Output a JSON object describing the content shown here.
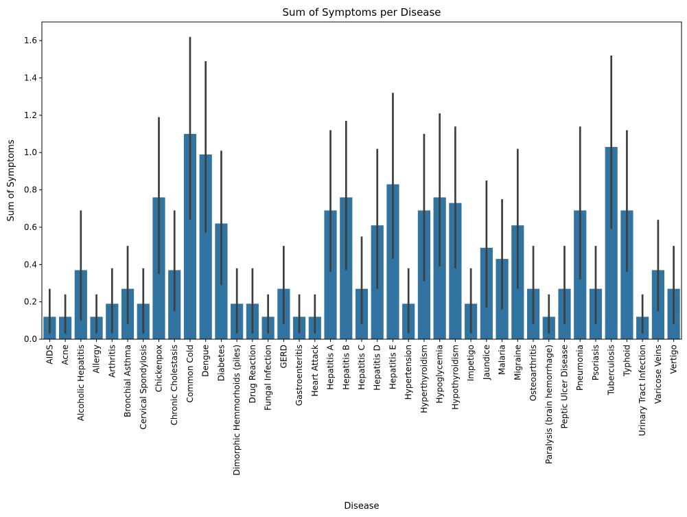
{
  "chart_data": {
    "type": "bar",
    "title": "Sum of Symptoms per Disease",
    "xlabel": "Disease",
    "ylabel": "Sum of Symptoms",
    "ylim": [
      0,
      1.7
    ],
    "yticks": [
      "0.0",
      "0.2",
      "0.4",
      "0.6",
      "0.8",
      "1.0",
      "1.2",
      "1.4",
      "1.6"
    ],
    "grid": false,
    "bar_color": "#3274a1",
    "errorbar_color": "#3d3d3d",
    "categories": [
      "AIDS",
      "Acne",
      "Alcoholic Hepatitis",
      "Allergy",
      "Arthritis",
      "Bronchial Asthma",
      "Cervical Spondylosis",
      "Chickenpox",
      "Chronic Cholestasis",
      "Common Cold",
      "Dengue",
      "Diabetes",
      "Dimorphic Hemmorhoids (piles)",
      "Drug Reaction",
      "Fungal Infection",
      "GERD",
      "Gastroenteritis",
      "Heart Attack",
      "Hepatitis A",
      "Hepatitis B",
      "Hepatitis C",
      "Hepatitis D",
      "Hepatitis E",
      "Hypertension",
      "Hyperthyroidism",
      "Hypoglycemia",
      "Hypothyroidism",
      "Impetigo",
      "Jaundice",
      "Malaria",
      "Migraine",
      "Osteoarthritis",
      "Paralysis (brain hemorrhage)",
      "Peptic Ulcer Disease",
      "Pneumonia",
      "Psoriasis",
      "Tuberculosis",
      "Typhoid",
      "Urinary Tract Infection",
      "Varicose Veins",
      "Vertigo"
    ],
    "values": [
      0.12,
      0.12,
      0.37,
      0.12,
      0.19,
      0.27,
      0.19,
      0.76,
      0.37,
      1.1,
      0.99,
      0.62,
      0.19,
      0.19,
      0.12,
      0.27,
      0.12,
      0.12,
      0.69,
      0.76,
      0.27,
      0.61,
      0.83,
      0.19,
      0.69,
      0.76,
      0.73,
      0.19,
      0.49,
      0.43,
      0.61,
      0.27,
      0.12,
      0.27,
      0.69,
      0.27,
      1.03,
      0.69,
      0.12,
      0.37,
      0.27
    ],
    "error_low": [
      0.03,
      0.03,
      0.1,
      0.03,
      0.03,
      0.08,
      0.03,
      0.35,
      0.15,
      0.64,
      0.57,
      0.29,
      0.03,
      0.03,
      0.03,
      0.08,
      0.03,
      0.03,
      0.36,
      0.37,
      0.08,
      0.27,
      0.43,
      0.03,
      0.31,
      0.39,
      0.38,
      0.03,
      0.17,
      0.16,
      0.27,
      0.08,
      0.03,
      0.08,
      0.32,
      0.08,
      0.59,
      0.36,
      0.03,
      0.15,
      0.08
    ],
    "error_high": [
      0.27,
      0.24,
      0.69,
      0.24,
      0.38,
      0.5,
      0.38,
      1.19,
      0.69,
      1.62,
      1.49,
      1.01,
      0.38,
      0.38,
      0.24,
      0.5,
      0.24,
      0.24,
      1.12,
      1.17,
      0.55,
      1.02,
      1.32,
      0.38,
      1.1,
      1.21,
      1.14,
      0.38,
      0.85,
      0.75,
      1.02,
      0.5,
      0.24,
      0.5,
      1.14,
      0.5,
      1.52,
      1.12,
      0.24,
      0.64,
      0.5
    ]
  }
}
